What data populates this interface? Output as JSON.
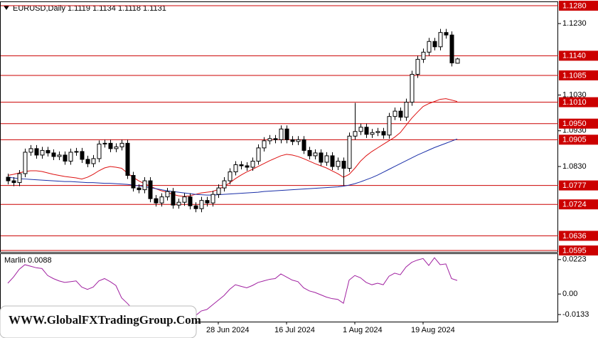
{
  "watermark": "WWW.GlobalFXTradingGroup.Com",
  "chart_data": [
    {
      "type": "candlestick",
      "title": "EURUSD,Daily  1.1119 1.1134 1.1118 1.1131",
      "categories": [
        null,
        null,
        null,
        null,
        null,
        null,
        null,
        null,
        null,
        null,
        null,
        null,
        null,
        null,
        null,
        null,
        null,
        null,
        null,
        null,
        null,
        null,
        null,
        null,
        null,
        null,
        null,
        null,
        null,
        null,
        null,
        null,
        null,
        null,
        null,
        null,
        null,
        "28 Jun 2024",
        null,
        null,
        null,
        null,
        null,
        null,
        null,
        null,
        null,
        null,
        null,
        "16 Jul 2024",
        null,
        null,
        null,
        null,
        null,
        null,
        null,
        null,
        null,
        null,
        null,
        "1 Aug 2024",
        null,
        null,
        null,
        null,
        null,
        null,
        null,
        null,
        null,
        null,
        null,
        "19 Aug 2024",
        null,
        null,
        null,
        null,
        null,
        null
      ],
      "open": [
        1.08,
        1.079,
        1.0785,
        1.081,
        1.087,
        1.088,
        1.0862,
        1.0875,
        1.0868,
        1.0858,
        1.0862,
        1.0845,
        1.087,
        1.0872,
        1.085,
        1.0838,
        1.0852,
        1.0893,
        1.0895,
        1.088,
        1.0885,
        1.0895,
        1.0805,
        1.077,
        1.0765,
        1.079,
        1.074,
        1.0728,
        1.0745,
        1.076,
        1.0722,
        1.073,
        1.0745,
        1.072,
        1.0712,
        1.0735,
        1.0728,
        1.0752,
        1.077,
        1.079,
        1.0815,
        1.0835,
        1.0832,
        1.0828,
        1.0845,
        1.0882,
        1.0902,
        1.0908,
        1.0905,
        1.0935,
        1.0905,
        1.09,
        1.0905,
        1.0875,
        1.086,
        1.0868,
        1.0842,
        1.086,
        1.083,
        1.0845,
        1.0825,
        1.0915,
        1.0928,
        1.094,
        1.092,
        1.0925,
        1.0928,
        1.0918,
        1.097,
        1.0985,
        1.0968,
        1.101,
        1.1088,
        1.113,
        1.115,
        1.118,
        1.1165,
        1.1205,
        1.1198,
        1.1119
      ],
      "high": [
        1.081,
        1.08,
        1.082,
        1.088,
        1.089,
        1.089,
        1.0885,
        1.0885,
        1.0878,
        1.0872,
        1.0872,
        1.088,
        1.0882,
        1.0882,
        1.086,
        1.0862,
        1.0903,
        1.0905,
        1.0905,
        1.0895,
        1.0905,
        1.0905,
        1.0815,
        1.078,
        1.08,
        1.08,
        1.075,
        1.0755,
        1.077,
        1.077,
        1.074,
        1.0755,
        1.0755,
        1.073,
        1.0745,
        1.0745,
        1.0762,
        1.078,
        1.08,
        1.0825,
        1.0845,
        1.0845,
        1.0842,
        1.0855,
        1.0892,
        1.0912,
        1.0918,
        1.0918,
        1.0945,
        1.0945,
        1.0915,
        1.0915,
        1.0915,
        1.0885,
        1.0878,
        1.0878,
        1.087,
        1.087,
        1.0855,
        1.0855,
        1.0925,
        1.1008,
        1.095,
        1.095,
        1.0935,
        1.0938,
        1.0938,
        1.098,
        1.0995,
        1.0995,
        1.102,
        1.1098,
        1.114,
        1.116,
        1.119,
        1.119,
        1.1215,
        1.1215,
        1.1208,
        1.1134
      ],
      "low": [
        1.078,
        1.0775,
        1.0775,
        1.08,
        1.086,
        1.0852,
        1.0852,
        1.0858,
        1.0848,
        1.0848,
        1.0835,
        1.0835,
        1.086,
        1.084,
        1.0828,
        1.0828,
        1.0842,
        1.0883,
        1.087,
        1.087,
        1.0875,
        1.0795,
        1.076,
        1.0755,
        1.0755,
        1.073,
        1.0718,
        1.0718,
        1.0735,
        1.0712,
        1.0712,
        1.072,
        1.071,
        1.0702,
        1.0702,
        1.0718,
        1.0718,
        1.0742,
        1.076,
        1.078,
        1.0805,
        1.0822,
        1.0818,
        1.0818,
        1.0835,
        1.0872,
        1.0892,
        1.0895,
        1.0895,
        1.0895,
        1.089,
        1.089,
        1.0865,
        1.085,
        1.085,
        1.0832,
        1.0832,
        1.082,
        1.082,
        1.0777,
        1.0815,
        1.0905,
        1.0918,
        1.091,
        1.091,
        1.0915,
        1.0908,
        1.0908,
        1.096,
        1.0958,
        1.0958,
        1.1,
        1.1078,
        1.112,
        1.114,
        1.1155,
        1.1155,
        1.1188,
        1.111,
        1.1118
      ],
      "close": [
        1.079,
        1.0785,
        1.081,
        1.087,
        1.088,
        1.0862,
        1.0875,
        1.0868,
        1.0858,
        1.0862,
        1.0845,
        1.087,
        1.0872,
        1.085,
        1.0838,
        1.0852,
        1.0893,
        1.0895,
        1.088,
        1.0885,
        1.0895,
        1.0805,
        1.077,
        1.0765,
        1.079,
        1.074,
        1.0728,
        1.0745,
        1.076,
        1.0722,
        1.073,
        1.0745,
        1.072,
        1.0712,
        1.0735,
        1.0728,
        1.0752,
        1.077,
        1.079,
        1.0815,
        1.0835,
        1.0832,
        1.0828,
        1.0845,
        1.0882,
        1.0902,
        1.0908,
        1.0905,
        1.0935,
        1.0905,
        1.09,
        1.0905,
        1.0875,
        1.086,
        1.0868,
        1.0842,
        1.086,
        1.083,
        1.0845,
        1.0825,
        1.0915,
        1.0928,
        1.094,
        1.092,
        1.0925,
        1.0928,
        1.0918,
        1.097,
        1.0985,
        1.0968,
        1.101,
        1.1088,
        1.113,
        1.115,
        1.118,
        1.1165,
        1.1205,
        1.1198,
        1.112,
        1.1131
      ],
      "up_color": "#ffffff",
      "down_color": "#000000",
      "series": [
        {
          "color": "#dd1111",
          "values": [
            1.0805,
            1.0808,
            1.0812,
            1.0816,
            1.0818,
            1.0818,
            1.0816,
            1.0812,
            1.0808,
            1.0805,
            1.0802,
            1.08,
            1.0798,
            1.0795,
            1.08,
            1.0808,
            1.0818,
            1.0826,
            1.083,
            1.0828,
            1.0825,
            1.0812,
            1.08,
            1.079,
            1.0782,
            1.0775,
            1.0768,
            1.0762,
            1.0758,
            1.0752,
            1.0748,
            1.0746,
            1.0748,
            1.0752,
            1.0756,
            1.0758,
            1.076,
            1.0766,
            1.0774,
            1.0784,
            1.0796,
            1.0806,
            1.0815,
            1.0822,
            1.083,
            1.0838,
            1.0846,
            1.0853,
            1.086,
            1.0864,
            1.0862,
            1.0858,
            1.0852,
            1.0845,
            1.0838,
            1.0832,
            1.0826,
            1.0818,
            1.081,
            1.08,
            1.0808,
            1.0825,
            1.0845,
            1.086,
            1.0872,
            1.0882,
            1.0892,
            1.0902,
            1.0912,
            1.0925,
            1.0945,
            1.0965,
            1.0982,
            1.0998,
            1.1006,
            1.1012,
            1.1018,
            1.102,
            1.1016,
            1.1012
          ]
        },
        {
          "color": "#1a2fa8",
          "values": [
            1.08,
            1.0798,
            1.0796,
            1.0795,
            1.0794,
            1.0793,
            1.0792,
            1.0791,
            1.079,
            1.0789,
            1.0788,
            1.0788,
            1.0787,
            1.0786,
            1.0785,
            1.0785,
            1.0784,
            1.0783,
            1.0783,
            1.0782,
            1.0781,
            1.078,
            1.0778,
            1.0776,
            1.0774,
            1.0771,
            1.0768,
            1.0765,
            1.0762,
            1.076,
            1.0758,
            1.0756,
            1.0754,
            1.0752,
            1.0751,
            1.075,
            1.075,
            1.0751,
            1.0752,
            1.0753,
            1.0754,
            1.0755,
            1.0756,
            1.0757,
            1.0758,
            1.076,
            1.0761,
            1.0762,
            1.0763,
            1.0764,
            1.0765,
            1.0766,
            1.0767,
            1.0768,
            1.0769,
            1.077,
            1.0771,
            1.0772,
            1.0773,
            1.0775,
            1.0778,
            1.0782,
            1.0787,
            1.0793,
            1.0799,
            1.0806,
            1.0814,
            1.0822,
            1.083,
            1.0838,
            1.0846,
            1.0854,
            1.0862,
            1.0869,
            1.0876,
            1.0883,
            1.0889,
            1.0895,
            1.0901,
            1.0907
          ]
        }
      ],
      "levels": [
        {
          "value": 1.128,
          "label": "1.1280"
        },
        {
          "value": 1.114,
          "label": "1.1140"
        },
        {
          "value": 1.1085,
          "label": "1.1085"
        },
        {
          "value": 1.101,
          "label": "1.1010"
        },
        {
          "value": 1.095,
          "label": "1.0950"
        },
        {
          "value": 1.0905,
          "label": "1.0905"
        },
        {
          "value": 1.0777,
          "label": "1.0777"
        },
        {
          "value": 1.0724,
          "label": "1.0724"
        },
        {
          "value": 1.0636,
          "label": "1.0636"
        },
        {
          "value": 1.0595,
          "label": "1.0595"
        }
      ],
      "level_color": "#cc0000",
      "ylim": [
        1.0591,
        1.129
      ],
      "yticks": [
        {
          "value": 1.123,
          "label": "1.1230"
        },
        {
          "value": 1.103,
          "label": "1.1030"
        },
        {
          "value": 1.093,
          "label": "1.0930"
        },
        {
          "value": 1.083,
          "label": "1.0830"
        }
      ]
    },
    {
      "type": "line",
      "title": "Marlin 0.0088",
      "color": "#a020a0",
      "values": [
        0.007,
        0.011,
        0.016,
        0.019,
        0.018,
        0.017,
        0.0165,
        0.012,
        0.01,
        0.0085,
        0.0075,
        0.008,
        0.0085,
        0.0045,
        0.003,
        0.0045,
        0.0085,
        0.01,
        0.008,
        0.0055,
        -0.0025,
        -0.006,
        -0.01,
        -0.0125,
        -0.011,
        -0.015,
        -0.0165,
        -0.015,
        -0.014,
        -0.017,
        -0.016,
        -0.015,
        -0.0165,
        -0.014,
        -0.011,
        -0.01,
        -0.007,
        -0.004,
        -0.001,
        0.003,
        0.006,
        0.005,
        0.004,
        0.0055,
        0.0075,
        0.0085,
        0.0095,
        0.01,
        0.013,
        0.011,
        0.009,
        0.008,
        0.004,
        0.002,
        0.001,
        -0.0005,
        -0.002,
        -0.003,
        -0.0035,
        -0.006,
        0.009,
        0.012,
        0.0105,
        0.0075,
        0.006,
        0.007,
        0.006,
        0.0115,
        0.0135,
        0.0125,
        0.0175,
        0.0205,
        0.022,
        0.023,
        0.0185,
        0.0235,
        0.019,
        0.0195,
        0.01,
        0.0088
      ],
      "ylim": [
        -0.0179,
        0.0259
      ],
      "yticks": [
        0.0223,
        {
          "value": 0,
          "label": "0.00"
        },
        -0.0133
      ]
    }
  ]
}
